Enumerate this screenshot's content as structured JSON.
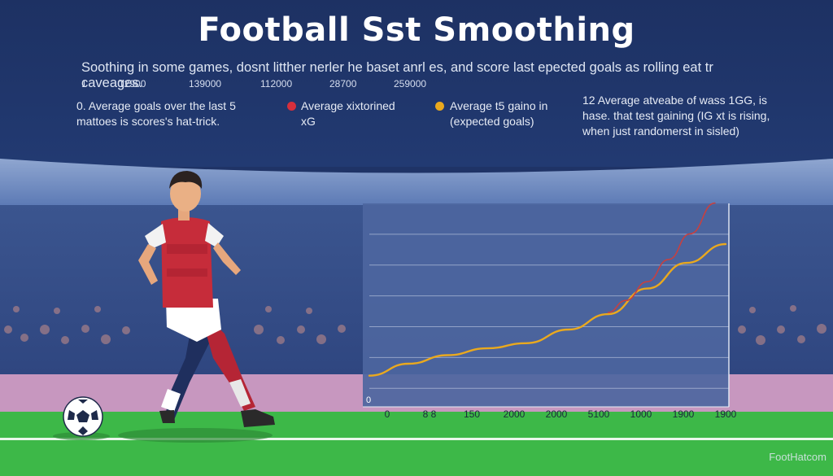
{
  "header": {
    "title": "Football Sst Smoothing",
    "subtitle": "Soothing in some games, dosnt litther nerler he baset anrl es, and score last epected goals as rolling eat tr caveages.",
    "number_row": [
      "1",
      "12900",
      "139000",
      "112000",
      "28700",
      "259000"
    ]
  },
  "legend": [
    {
      "text_1": "0. Average goals over the last 5",
      "text_2": "mattoes is scores's hat-trick."
    },
    {
      "text_1": "Average xixtorined",
      "text_2": "xG",
      "color": "#d62f3c"
    },
    {
      "text_1": "Average t5 gaino in",
      "text_2": "(expected goals)",
      "color": "#eaa91e"
    },
    {
      "text_1": "12  Average atveabe of wass 1GG, is",
      "text_2": "hase. that test gaining (IG xt is rising,",
      "text_3": "when just randomerst in sisled)"
    }
  ],
  "chart_data": {
    "type": "line",
    "x_tick_labels": [
      "0",
      "8 8",
      "150",
      "2000",
      "2000",
      "5100",
      "1000",
      "1900",
      "1900"
    ],
    "y_zero_label": "0",
    "grid": true,
    "series": [
      {
        "color": "#eaa91e",
        "values": [
          0.03,
          0.1,
          0.15,
          0.19,
          0.22,
          0.3,
          0.39,
          0.54,
          0.69,
          0.8
        ]
      },
      {
        "color": "#c74040",
        "values": [
          0.4,
          0.47,
          0.58,
          0.71,
          0.86,
          1.04
        ]
      }
    ],
    "series_x": [
      [
        0,
        0.11,
        0.22,
        0.33,
        0.44,
        0.56,
        0.67,
        0.78,
        0.89,
        1.0
      ],
      [
        0.67,
        0.72,
        0.78,
        0.84,
        0.9,
        0.97
      ]
    ]
  },
  "brand": "FootHatcom",
  "colors": {
    "sky_top": "#1f3366",
    "stand_band": "#4a6aa8",
    "crowd": "#3a5290",
    "pink_wall": "#c997c0",
    "grass": "#3fb94a",
    "chart_bg": "#4d66a0"
  }
}
